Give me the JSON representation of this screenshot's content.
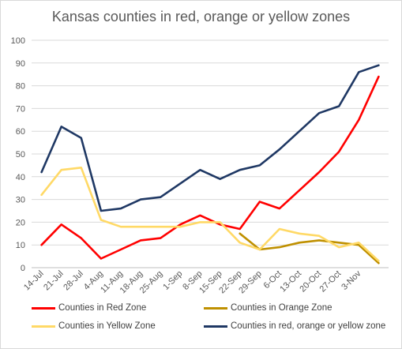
{
  "chart_data": {
    "type": "line",
    "title": "Kansas counties in red, orange or yellow zones",
    "xlabel": "",
    "ylabel": "",
    "ylim": [
      0,
      100
    ],
    "yticks": [
      0,
      10,
      20,
      30,
      40,
      50,
      60,
      70,
      80,
      90,
      100
    ],
    "grid": true,
    "legend_position": "bottom",
    "categories": [
      "14-Jul",
      "21-Jul",
      "28-Jul",
      "4-Aug",
      "11-Aug",
      "18-Aug",
      "25-Aug",
      "1-Sep",
      "8-Sep",
      "15-Sep",
      "22-Sep",
      "29-Sep",
      "6-Oct",
      "13-Oct",
      "20-Oct",
      "27-Oct",
      "3-Nov",
      ""
    ],
    "series": [
      {
        "name": "Counties in Red Zone",
        "color": "#ff0000",
        "values": [
          10,
          19,
          13,
          4,
          8,
          12,
          13,
          19,
          23,
          19,
          17,
          29,
          26,
          34,
          42,
          51,
          65,
          84
        ]
      },
      {
        "name": "Counties in Orange Zone",
        "color": "#bf9000",
        "values": [
          null,
          null,
          null,
          null,
          null,
          null,
          null,
          null,
          null,
          null,
          15,
          8,
          9,
          11,
          12,
          11,
          10,
          2
        ]
      },
      {
        "name": "Counties in Yellow Zone",
        "color": "#ffd966",
        "values": [
          32,
          43,
          44,
          21,
          18,
          18,
          18,
          18,
          20,
          20,
          11,
          8,
          17,
          15,
          14,
          9,
          11,
          3
        ]
      },
      {
        "name": "Counties in red, orange or yellow zone",
        "color": "#1f3864",
        "values": [
          42,
          62,
          57,
          25,
          26,
          30,
          31,
          37,
          43,
          39,
          43,
          45,
          52,
          60,
          68,
          71,
          86,
          89
        ]
      }
    ]
  }
}
